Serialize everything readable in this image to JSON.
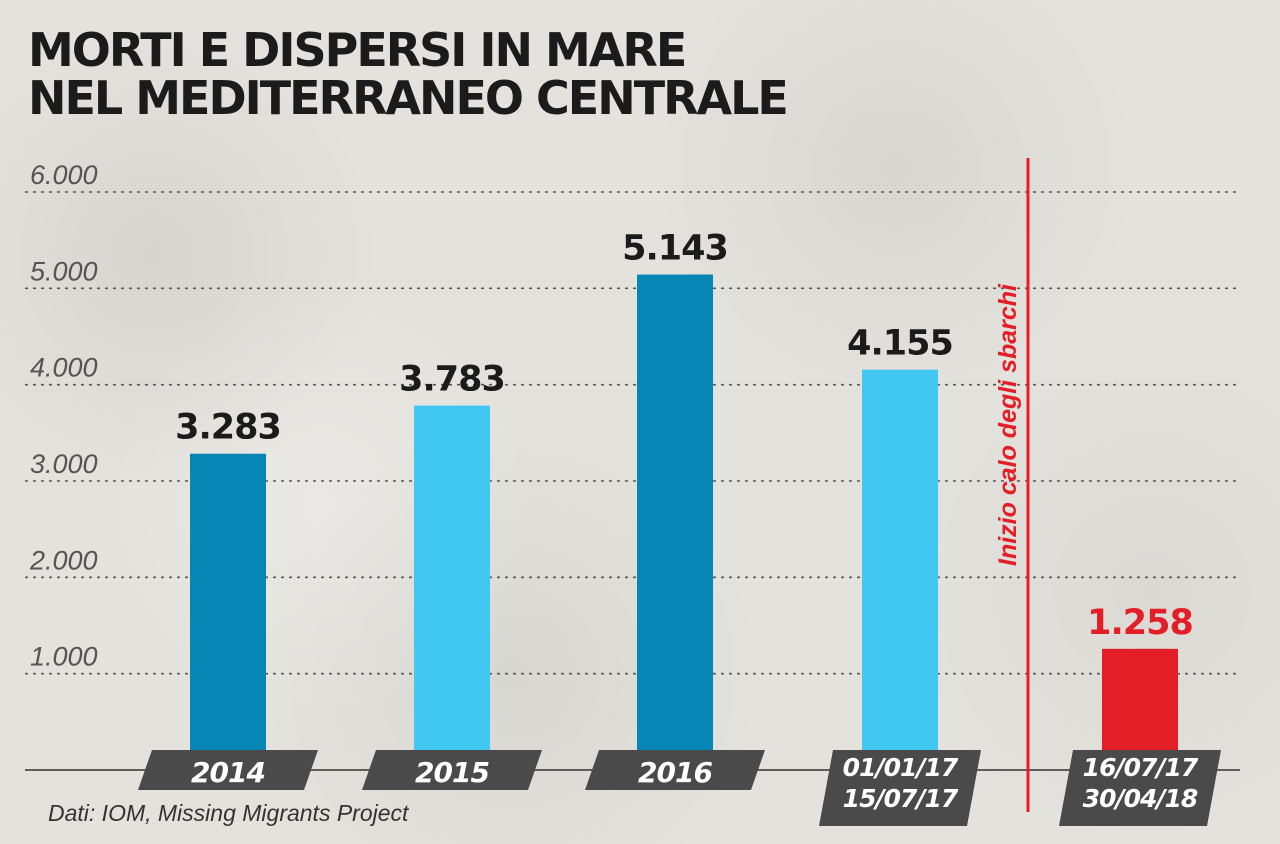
{
  "title_lines": [
    "MORTI E DISPERSI IN MARE",
    "NEL MEDITERRANEO CENTRALE"
  ],
  "source": "Dati: IOM, Missing Migrants Project",
  "colors": {
    "dark_blue": "#0586b5",
    "light_blue": "#41c8f2",
    "red": "#e41e26",
    "text": "#1b1b1b",
    "axis_label": "#555555",
    "label_box": "#4a4a4a"
  },
  "chart_data": {
    "type": "bar",
    "title": "MORTI E DISPERSI IN MARE NEL MEDITERRANEO CENTRALE",
    "xlabel": "",
    "ylabel": "",
    "ylim": [
      0,
      6000
    ],
    "yticks": [
      1000,
      2000,
      3000,
      4000,
      5000,
      6000
    ],
    "ytick_labels": [
      "1.000",
      "2.000",
      "3.000",
      "4.000",
      "5.000",
      "6.000"
    ],
    "grid": true,
    "categories": [
      [
        "2014"
      ],
      [
        "2015"
      ],
      [
        "2016"
      ],
      [
        "01/01/17",
        "15/07/17"
      ],
      [
        "16/07/17",
        "30/04/18"
      ]
    ],
    "values": [
      3283,
      3783,
      5143,
      4155,
      1258
    ],
    "value_labels": [
      "3.283",
      "3.783",
      "5.143",
      "4.155",
      "1.258"
    ],
    "bar_colors": [
      "dark_blue",
      "light_blue",
      "dark_blue",
      "light_blue",
      "red"
    ],
    "annotation": "Inizio calo degli sbarchi"
  }
}
